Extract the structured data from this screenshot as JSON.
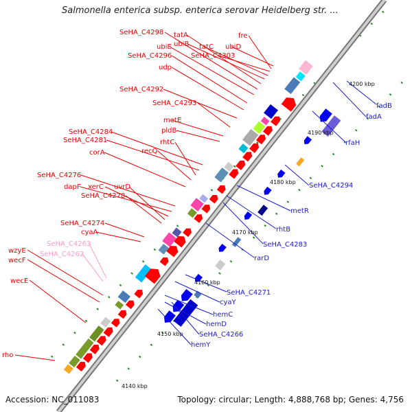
{
  "title": "Salmonella enterica subsp. enterica serovar Heidelberg str. ...",
  "accession": "Accession: NC_011083",
  "summary": "Topology: circular; Length: 4,888,768 bp; Genes: 4,756",
  "colors": {
    "forward_genes": "#ff0000",
    "reverse_genes": "#0000ee",
    "backbone": "#a0a0a0",
    "tick": "#228b22",
    "pink_label": "#ff9ac8"
  },
  "kbp_ticks": [
    "4140 kbp",
    "4150 kbp",
    "4160 kbp",
    "4170 kbp",
    "4180 kbp",
    "4190 kbp",
    "4200 kbp"
  ],
  "forward_labels": [
    "SeHA_C4298",
    "tatA",
    "ubiB",
    "fre",
    "ubiE",
    "tatC",
    "ubiD",
    "SeHA_C4296",
    "SeHA_C4303",
    "udp",
    "SeHA_C4292",
    "SeHA_C4293",
    "metE",
    "pldB",
    "SeHA_C4284",
    "SeHA_C4281",
    "rhtC",
    "recQ",
    "corA",
    "SeHA_C4276",
    "dapF",
    "xerC",
    "uvrD",
    "SeHA_C4278",
    "SeHA_C4274",
    "cyaA",
    "SeHA_C4263",
    "wzyE",
    "SeHA_C4262",
    "wecF",
    "wecE",
    "rho"
  ],
  "reverse_labels": [
    "fadB",
    "fadA",
    "rfaH",
    "SeHA_C4294",
    "metR",
    "rhtB",
    "SeHA_C4283",
    "rarD",
    "SeHA_C4271",
    "cyaY",
    "hemC",
    "hemD",
    "SeHA_C4266",
    "hemY"
  ]
}
